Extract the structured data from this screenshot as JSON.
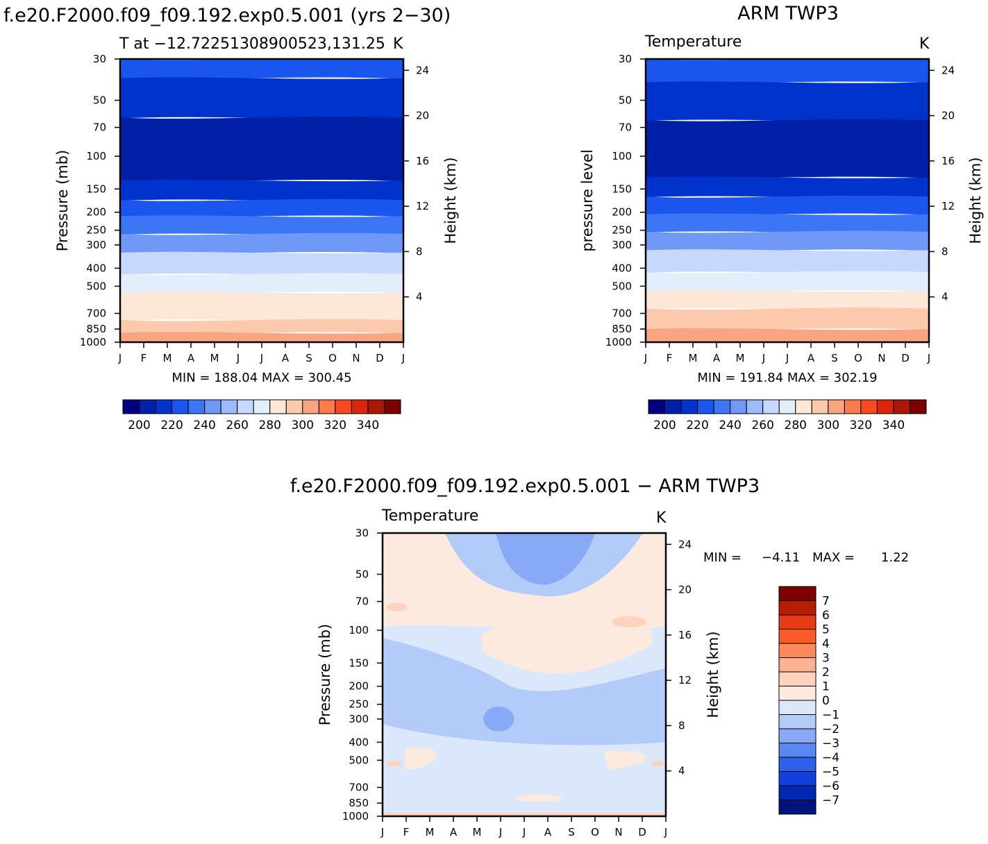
{
  "panels": [
    {
      "id": "model",
      "title": "f.e20.F2000.f09_f09.192.exp0.5.001 (yrs 2−30)",
      "left_label": "T at −12.72251308900523,131.25",
      "right_label": "K",
      "ylabel": "Pressure (mb)",
      "y2label": "Height (km)",
      "minmax": "MIN = 188.04 MAX = 300.45"
    },
    {
      "id": "obs",
      "title": "ARM TWP3",
      "left_label": "Temperature",
      "right_label": "K",
      "ylabel": "pressure level",
      "y2label": "Height (km)",
      "minmax": "MIN = 191.84 MAX = 302.19"
    },
    {
      "id": "diff",
      "title": "f.e20.F2000.f09_f09.192.exp0.5.001 − ARM TWP3",
      "left_label": "Temperature",
      "right_label": "K",
      "ylabel": "Pressure (mb)",
      "y2label": "Height (km)",
      "minmax_min_label": "MIN =",
      "minmax_min": "−4.11",
      "minmax_max_label": "MAX =",
      "minmax_max": "1.22"
    }
  ],
  "months": [
    "J",
    "F",
    "M",
    "A",
    "M",
    "J",
    "J",
    "A",
    "S",
    "O",
    "N",
    "D",
    "J"
  ],
  "pressure_ticks": [
    "30",
    "50",
    "70",
    "100",
    "150",
    "200",
    "250",
    "300",
    "400",
    "500",
    "700",
    "850",
    "1000"
  ],
  "height_ticks": [
    "24",
    "20",
    "16",
    "12",
    "8",
    "4"
  ],
  "colorbar_main": {
    "labels": [
      "200",
      "220",
      "240",
      "260",
      "280",
      "300",
      "320",
      "340"
    ],
    "colors": [
      "#00007f",
      "#0020a8",
      "#0033cc",
      "#1a55ee",
      "#3d76f5",
      "#6f98f7",
      "#9dbaf9",
      "#c6d8fb",
      "#e3eefc",
      "#fde8d8",
      "#fcc9ad",
      "#f9a583",
      "#fd7a4c",
      "#f74a22",
      "#d9260c",
      "#a81a05",
      "#780000"
    ]
  },
  "colorbar_diff": {
    "labels": [
      "7",
      "6",
      "5",
      "4",
      "3",
      "2",
      "1",
      "0",
      "−1",
      "−2",
      "−3",
      "−4",
      "−5",
      "−6",
      "−7"
    ],
    "colors": [
      "#7f0000",
      "#b81e05",
      "#e83a14",
      "#fd5a27",
      "#fc8a5e",
      "#fbb292",
      "#fdd3bd",
      "#fdeadf",
      "#dbe8fb",
      "#b3cbf9",
      "#88a9f6",
      "#5b87f2",
      "#2e60ec",
      "#1240dc",
      "#0028b0",
      "#00137f"
    ]
  },
  "chart_data": [
    {
      "type": "heatmap",
      "title": "f.e20.F2000.f09_f09.192.exp0.5.001 (yrs 2−30)",
      "subtitle": "T at −12.72251308900523,131.25",
      "units": "K",
      "x": [
        "J",
        "F",
        "M",
        "A",
        "M",
        "J",
        "J",
        "A",
        "S",
        "O",
        "N",
        "D",
        "J"
      ],
      "ylabel": "Pressure (mb)",
      "y2label": "Height (km)",
      "y_scale": "log",
      "ylim": [
        1000,
        30
      ],
      "y2lim_km": [
        0,
        25
      ],
      "min": 188.04,
      "max": 300.45,
      "contour_levels": [
        190,
        200,
        210,
        220,
        230,
        240,
        250,
        260,
        270,
        280,
        290,
        300
      ],
      "bands": [
        {
          "level_p": [
            30,
            38
          ],
          "value": 213
        },
        {
          "level_p": [
            38,
            62
          ],
          "value": 203
        },
        {
          "level_p": [
            62,
            135
          ],
          "value": 194
        },
        {
          "level_p": [
            135,
            172
          ],
          "value": 202
        },
        {
          "level_p": [
            172,
            210
          ],
          "value": 212
        },
        {
          "level_p": [
            210,
            262
          ],
          "value": 224
        },
        {
          "level_p": [
            262,
            330
          ],
          "value": 236
        },
        {
          "level_p": [
            330,
            430
          ],
          "value": 252
        },
        {
          "level_p": [
            430,
            540
          ],
          "value": 266
        },
        {
          "level_p": [
            540,
            760
          ],
          "value": 279
        },
        {
          "level_p": [
            760,
            890
          ],
          "value": 287
        },
        {
          "level_p": [
            890,
            1000
          ],
          "value": 296
        }
      ]
    },
    {
      "type": "heatmap",
      "title": "ARM TWP3",
      "subtitle": "Temperature",
      "units": "K",
      "x": [
        "J",
        "F",
        "M",
        "A",
        "M",
        "J",
        "J",
        "A",
        "S",
        "O",
        "N",
        "D",
        "J"
      ],
      "ylabel": "pressure level",
      "y2label": "Height (km)",
      "y_scale": "log",
      "ylim": [
        1000,
        30
      ],
      "y2lim_km": [
        0,
        25
      ],
      "min": 191.84,
      "max": 302.19,
      "contour_levels": [
        190,
        200,
        210,
        220,
        230,
        240,
        250,
        260,
        270,
        280,
        290,
        300
      ],
      "bands": [
        {
          "level_p": [
            30,
            40
          ],
          "value": 213
        },
        {
          "level_p": [
            40,
            64
          ],
          "value": 204
        },
        {
          "level_p": [
            64,
            130
          ],
          "value": 195
        },
        {
          "level_p": [
            130,
            165
          ],
          "value": 203
        },
        {
          "level_p": [
            165,
            205
          ],
          "value": 213
        },
        {
          "level_p": [
            205,
            255
          ],
          "value": 225
        },
        {
          "level_p": [
            255,
            320
          ],
          "value": 238
        },
        {
          "level_p": [
            320,
            420
          ],
          "value": 253
        },
        {
          "level_p": [
            420,
            530
          ],
          "value": 266
        },
        {
          "level_p": [
            530,
            660
          ],
          "value": 279
        },
        {
          "level_p": [
            660,
            850
          ],
          "value": 287
        },
        {
          "level_p": [
            850,
            1000
          ],
          "value": 297
        }
      ]
    },
    {
      "type": "heatmap",
      "title": "f.e20.F2000.f09_f09.192.exp0.5.001 − ARM TWP3",
      "subtitle": "Temperature",
      "units": "K",
      "x": [
        "J",
        "F",
        "M",
        "A",
        "M",
        "J",
        "J",
        "A",
        "S",
        "O",
        "N",
        "D",
        "J"
      ],
      "ylabel": "Pressure (mb)",
      "y2label": "Height (km)",
      "y_scale": "log",
      "ylim": [
        1000,
        30
      ],
      "y2lim_km": [
        0,
        25
      ],
      "min": -4.11,
      "max": 1.22,
      "contour_levels": [
        -7,
        -6,
        -5,
        -4,
        -3,
        -2,
        -1,
        0,
        1,
        2,
        3,
        4,
        5,
        6,
        7
      ],
      "bands": [
        {
          "level_p": [
            30,
            45
          ],
          "value": -2.5
        },
        {
          "level_p": [
            45,
            70
          ],
          "value": -1.5
        },
        {
          "level_p": [
            70,
            95
          ],
          "value": -0.5
        },
        {
          "level_p": [
            95,
            150
          ],
          "value": -2.5
        },
        {
          "level_p": [
            150,
            300
          ],
          "value": -2.5
        },
        {
          "level_p": [
            300,
            400
          ],
          "value": -2.5
        },
        {
          "level_p": [
            400,
            700
          ],
          "value": -1.5
        },
        {
          "level_p": [
            700,
            1000
          ],
          "value": -1.5
        }
      ]
    }
  ]
}
